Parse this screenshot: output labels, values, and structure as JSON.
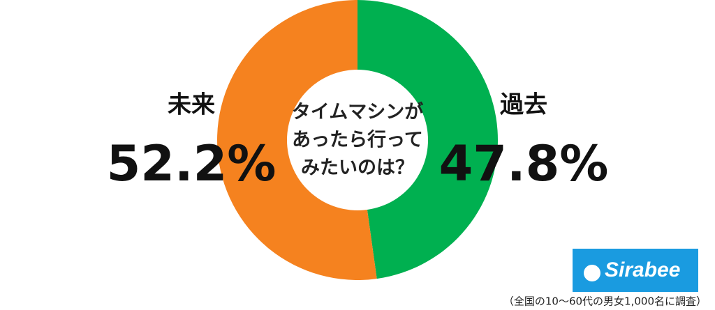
{
  "chart_data": {
    "type": "donut",
    "title": [
      "タイムマシンが",
      "あったら行って",
      "みたいのは？"
    ],
    "categories": [
      "過去",
      "未来"
    ],
    "values": [
      47.8,
      52.2
    ],
    "value_labels": [
      "47.8%",
      "52.2%"
    ],
    "colors": [
      "#00b050",
      "#f5821f"
    ]
  },
  "logo": "Sirabee",
  "footnote": "（全国の10～60代の男女1,000名に調査）"
}
